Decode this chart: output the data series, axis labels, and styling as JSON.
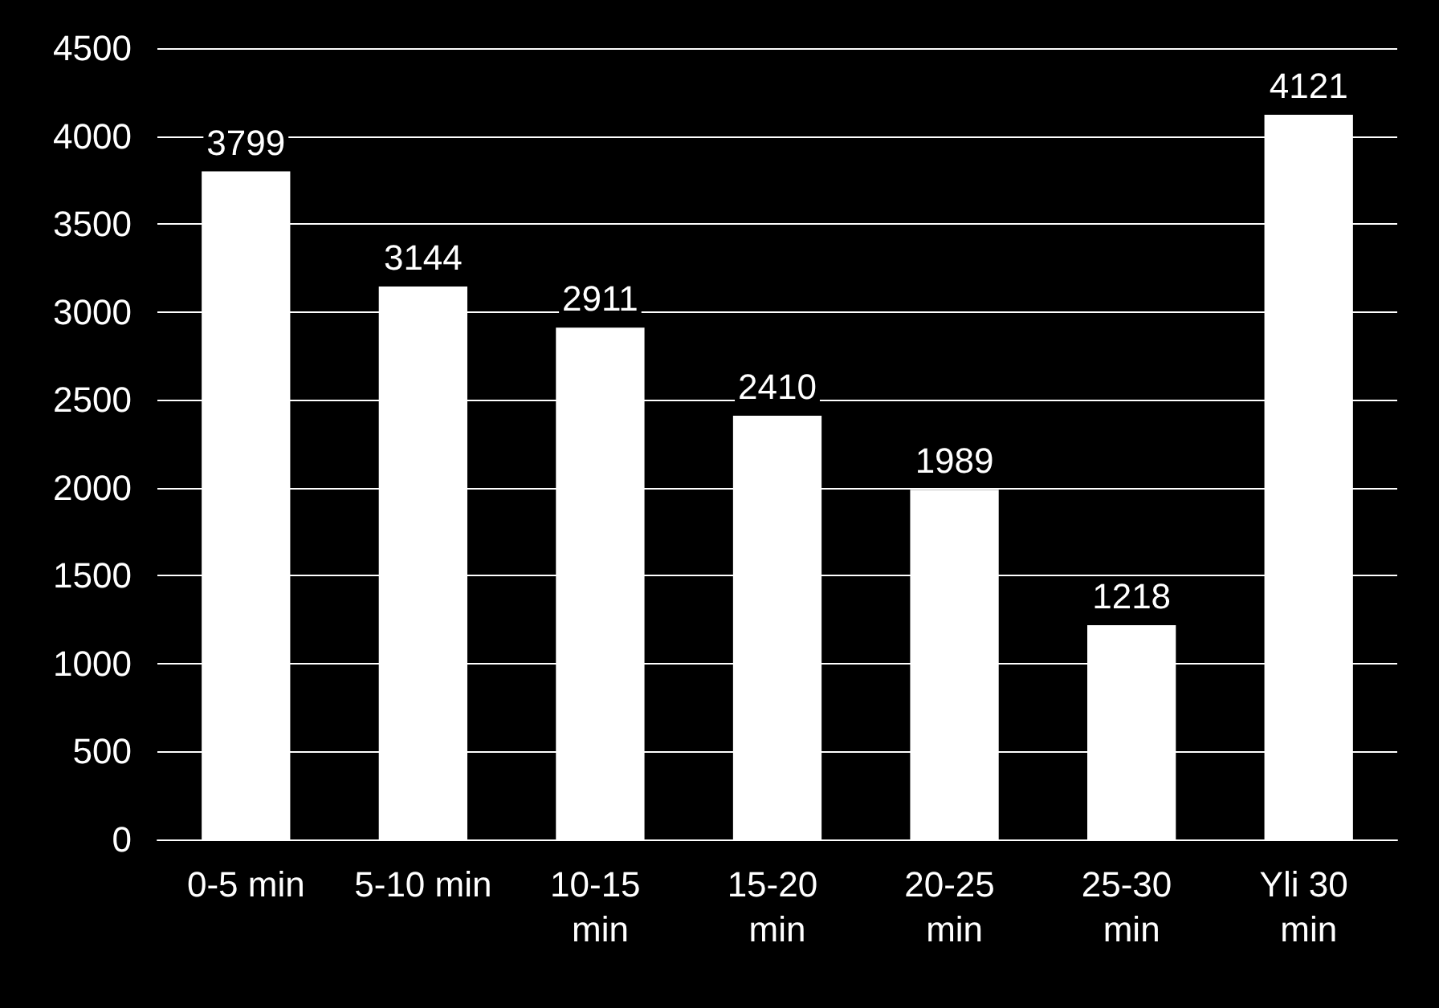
{
  "chart_data": {
    "type": "bar",
    "categories": [
      "0-5 min",
      "5-10 min",
      "10-15 min",
      "15-20 min",
      "20-25 min",
      "25-30 min",
      "Yli 30 min"
    ],
    "values": [
      3799,
      3144,
      2911,
      2410,
      1989,
      1218,
      4121
    ],
    "color": "#ffffff",
    "ylim": [
      0,
      4500
    ],
    "yticks": [
      0,
      500,
      1000,
      1500,
      2000,
      2500,
      3000,
      3500,
      4000,
      4500
    ],
    "grid": "y",
    "data_labels": true
  }
}
